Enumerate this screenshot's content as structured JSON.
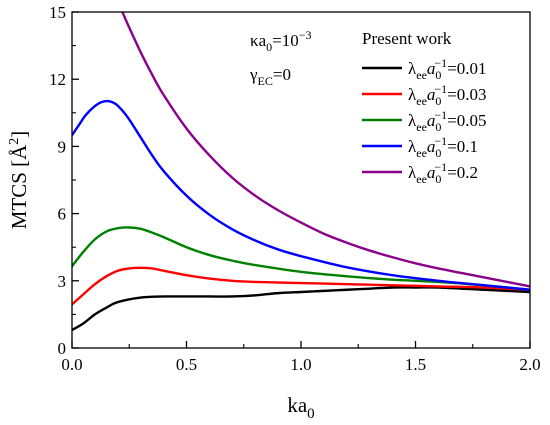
{
  "chart_data": {
    "type": "line",
    "xlabel_main": "ka",
    "xlabel_sub": "0",
    "ylabel_main": "MTCS [Å",
    "ylabel_sup": "2",
    "ylabel_end": "]",
    "xlim": [
      0,
      2.0
    ],
    "ylim": [
      0,
      15
    ],
    "xticks": [
      0.0,
      0.5,
      1.0,
      1.5,
      2.0
    ],
    "xtick_labels": [
      "0.0",
      "0.5",
      "1.0",
      "1.5",
      "2.0"
    ],
    "yticks": [
      0,
      3,
      6,
      9,
      12,
      15
    ],
    "ytick_labels": [
      "0",
      "3",
      "6",
      "9",
      "12",
      "15"
    ],
    "grid": false,
    "legend_position": "top-right",
    "legend_title": "Present work",
    "annotations": {
      "kappa": {
        "pre": "κa",
        "sub": "0",
        "mid": "=10",
        "sup": "−3"
      },
      "gamma": {
        "pre": "γ",
        "sub": "EC",
        "post": "=0"
      }
    },
    "series": [
      {
        "label": {
          "lambda": "λ",
          "sub1": "ee",
          "a": "a",
          "sub2": "0",
          "sup": "−1",
          "value": "=0.01"
        },
        "color": "#000000",
        "x": [
          0,
          0.05,
          0.1,
          0.15,
          0.2,
          0.3,
          0.4,
          0.5,
          0.6,
          0.7,
          0.8,
          0.9,
          1.0,
          1.1,
          1.2,
          1.3,
          1.4,
          1.5,
          1.6,
          1.7,
          1.8,
          1.9,
          2.0
        ],
        "y": [
          0.8,
          1.1,
          1.5,
          1.8,
          2.05,
          2.25,
          2.3,
          2.3,
          2.3,
          2.3,
          2.35,
          2.45,
          2.5,
          2.55,
          2.6,
          2.65,
          2.7,
          2.7,
          2.7,
          2.65,
          2.6,
          2.55,
          2.5
        ]
      },
      {
        "label": {
          "lambda": "λ",
          "sub1": "ee",
          "a": "a",
          "sub2": "0",
          "sup": "−1",
          "value": "=0.03"
        },
        "color": "#ff0000",
        "x": [
          0,
          0.05,
          0.1,
          0.15,
          0.2,
          0.25,
          0.3,
          0.35,
          0.4,
          0.5,
          0.6,
          0.7,
          0.8,
          1.0,
          1.2,
          1.4,
          1.6,
          1.8,
          2.0
        ],
        "y": [
          1.95,
          2.4,
          2.85,
          3.2,
          3.45,
          3.55,
          3.58,
          3.55,
          3.45,
          3.25,
          3.1,
          3.0,
          2.95,
          2.9,
          2.85,
          2.8,
          2.75,
          2.7,
          2.6
        ]
      },
      {
        "label": {
          "lambda": "λ",
          "sub1": "ee",
          "a": "a",
          "sub2": "0",
          "sup": "−1",
          "value": "=0.05"
        },
        "color": "#008000",
        "x": [
          0,
          0.05,
          0.1,
          0.15,
          0.2,
          0.25,
          0.3,
          0.35,
          0.4,
          0.5,
          0.6,
          0.7,
          0.8,
          1.0,
          1.2,
          1.4,
          1.6,
          1.8,
          2.0
        ],
        "y": [
          3.65,
          4.3,
          4.85,
          5.2,
          5.35,
          5.38,
          5.32,
          5.15,
          4.95,
          4.5,
          4.15,
          3.9,
          3.7,
          3.4,
          3.2,
          3.05,
          2.95,
          2.8,
          2.6
        ]
      },
      {
        "label": {
          "lambda": "λ",
          "sub1": "ee",
          "a": "a",
          "sub2": "0",
          "sup": "−1",
          "value": "=0.1"
        },
        "color": "#0000ff",
        "x": [
          0,
          0.03,
          0.06,
          0.1,
          0.13,
          0.16,
          0.19,
          0.22,
          0.25,
          0.3,
          0.35,
          0.4,
          0.5,
          0.6,
          0.7,
          0.8,
          0.9,
          1.0,
          1.2,
          1.4,
          1.6,
          1.8,
          2.0
        ],
        "y": [
          9.5,
          9.95,
          10.4,
          10.8,
          10.98,
          11.02,
          10.9,
          10.6,
          10.2,
          9.4,
          8.6,
          7.9,
          6.8,
          5.95,
          5.3,
          4.8,
          4.4,
          4.1,
          3.6,
          3.25,
          3.0,
          2.8,
          2.6
        ]
      },
      {
        "label": {
          "lambda": "λ",
          "sub1": "ee",
          "a": "a",
          "sub2": "0",
          "sup": "−1",
          "value": "=0.2"
        },
        "color": "#8b008b",
        "x": [
          0.22,
          0.25,
          0.3,
          0.35,
          0.4,
          0.5,
          0.6,
          0.7,
          0.8,
          0.9,
          1.0,
          1.1,
          1.2,
          1.3,
          1.4,
          1.5,
          1.6,
          1.7,
          1.8,
          1.9,
          2.0
        ],
        "y": [
          15.0,
          14.3,
          13.2,
          12.2,
          11.3,
          9.8,
          8.6,
          7.6,
          6.8,
          6.15,
          5.6,
          5.1,
          4.7,
          4.35,
          4.05,
          3.78,
          3.55,
          3.35,
          3.15,
          2.95,
          2.75
        ]
      }
    ]
  }
}
